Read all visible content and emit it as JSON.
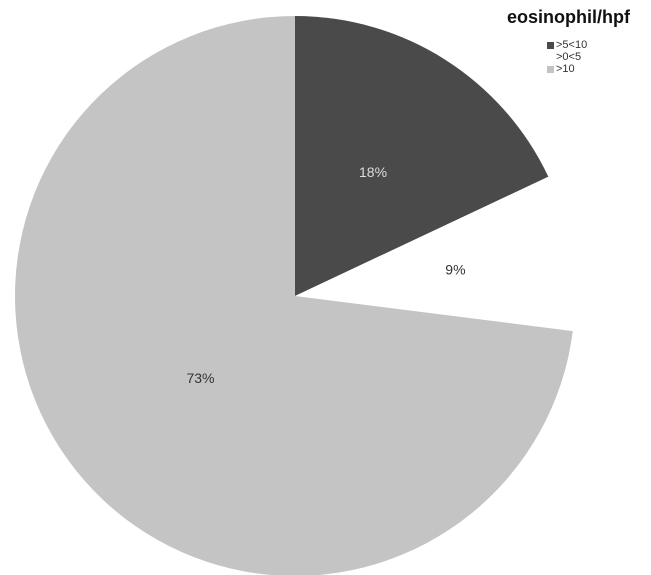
{
  "chart_data": {
    "type": "pie",
    "title": "",
    "legend_title": "eosinophil/hpf",
    "legend_position": "top-right",
    "slices": [
      {
        "label": ">5<10",
        "value": 18,
        "display": "18%",
        "color": "#4a4a4a",
        "label_color": "#dddddd"
      },
      {
        "label": ">0<5",
        "value": 9,
        "display": "9%",
        "color": "#ffffff",
        "label_color": "#333333"
      },
      {
        "label": ">10",
        "value": 73,
        "display": "73%",
        "color": "#c4c4c4",
        "label_color": "#333333"
      }
    ]
  }
}
